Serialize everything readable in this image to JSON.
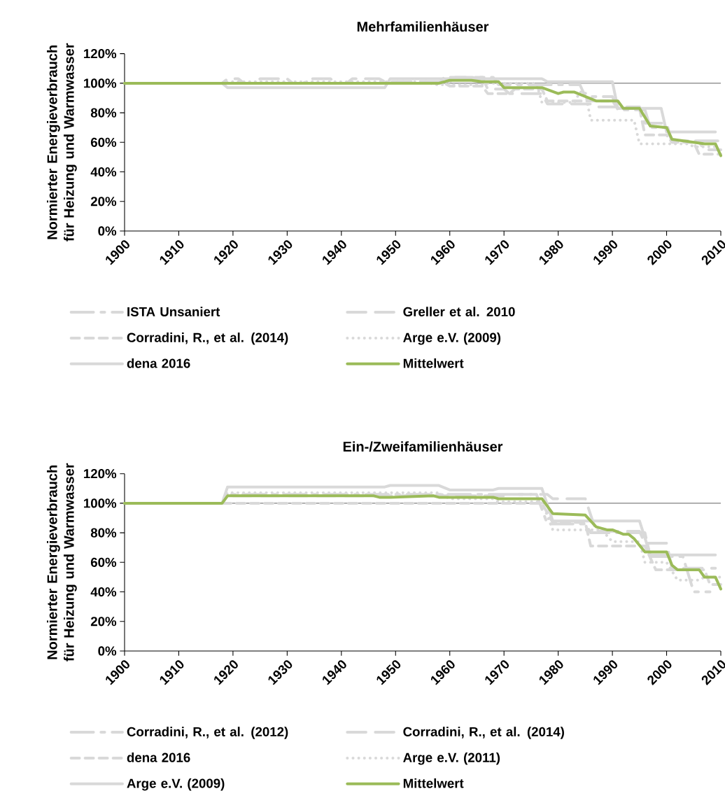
{
  "chart_data": [
    {
      "type": "line",
      "title": "Mehrfamilienhäuser",
      "ylabel": "Normierter Energieverbrauch für Heizung und Warmwasser",
      "xlim": [
        1900,
        2010
      ],
      "xticks": [
        1900,
        1910,
        1920,
        1930,
        1940,
        1950,
        1960,
        1970,
        1980,
        1990,
        2000,
        2010
      ],
      "ylim": [
        0,
        120
      ],
      "yticks": [
        {
          "value": 0,
          "label": "0%"
        },
        {
          "value": 20,
          "label": "20%"
        },
        {
          "value": 40,
          "label": "40%"
        },
        {
          "value": 60,
          "label": "60%"
        },
        {
          "value": 80,
          "label": "80%"
        },
        {
          "value": 100,
          "label": "100%"
        },
        {
          "value": 120,
          "label": "120%"
        }
      ],
      "legend": "bottom",
      "ref_lines": [
        {
          "axis": "y",
          "value": 100,
          "color": "#808080"
        }
      ],
      "series": [
        {
          "name": "ISTA Unsaniert",
          "color": "#d9d9d9",
          "line_style": "dashdot",
          "x": [
            1900,
            1958,
            1959,
            1968,
            1969,
            1984,
            1985,
            1990,
            1991,
            1996,
            1997,
            2000,
            2001,
            2010
          ],
          "values": [
            100,
            100,
            104,
            104,
            99,
            99,
            91,
            91,
            82,
            82,
            70,
            70,
            61,
            61
          ]
        },
        {
          "name": "Greller et al. 2010",
          "color": "#d9d9d9",
          "line_style": "longdash",
          "x": [
            1900,
            1918,
            1919,
            1921,
            1922,
            1924,
            1925,
            1930,
            1931,
            1933,
            1934,
            1938,
            1939,
            1941,
            1942,
            1947,
            1948,
            1960,
            1961,
            1966,
            1967,
            1970,
            1971,
            1977,
            1978,
            1986,
            1987,
            1995,
            1996,
            2000,
            2001,
            2006,
            2007,
            2010
          ],
          "values": [
            100,
            100,
            103,
            103,
            100,
            100,
            103,
            103,
            100,
            100,
            103,
            103,
            100,
            100,
            103,
            103,
            101,
            101,
            104,
            104,
            96,
            96,
            93,
            93,
            86,
            86,
            84,
            84,
            73,
            73,
            60,
            60,
            55,
            55
          ]
        },
        {
          "name": "Corradini, R., et al. (2014)",
          "color": "#d9d9d9",
          "line_style": "dashed",
          "x": [
            1900,
            1959,
            1960,
            1966,
            1967,
            1971,
            1972,
            1977,
            1978,
            1990,
            1991,
            1995,
            1996,
            2000,
            2001,
            2005,
            2006,
            2010
          ],
          "values": [
            100,
            100,
            98,
            98,
            93,
            93,
            96,
            96,
            88,
            88,
            83,
            83,
            65,
            65,
            60,
            60,
            52,
            52
          ]
        },
        {
          "name": "Arge e.V.  (2009)",
          "color": "#d9d9d9",
          "line_style": "dotted",
          "x": [
            1900,
            1918,
            1919,
            1956,
            1957,
            1966,
            1967,
            1976,
            1977,
            1983,
            1984,
            1985,
            1986,
            1994,
            1995,
            2004,
            2005,
            2009
          ],
          "values": [
            100,
            100,
            101,
            101,
            99,
            99,
            100,
            100,
            87,
            87,
            94,
            94,
            75,
            75,
            59,
            59,
            57,
            57
          ]
        },
        {
          "name": "dena 2016",
          "color": "#d9d9d9",
          "line_style": "solid",
          "x": [
            1900,
            1918,
            1919,
            1948,
            1949,
            1977,
            1978,
            1990,
            1991,
            1999,
            2000,
            2009
          ],
          "values": [
            100,
            100,
            97,
            97,
            103,
            103,
            101,
            101,
            83,
            83,
            67,
            67
          ]
        },
        {
          "name": "Mittelwert",
          "color": "#9bbb59",
          "line_style": "solid",
          "x": [
            1900,
            1958,
            1960,
            1964,
            1966,
            1969,
            1970,
            1977,
            1980,
            1981,
            1983,
            1987,
            1991,
            1992,
            1995,
            1997,
            2000,
            2001,
            2005,
            2007,
            2009,
            2010
          ],
          "values": [
            100,
            100,
            102,
            102,
            101,
            101,
            97,
            97,
            93,
            94,
            94,
            88,
            88,
            83,
            83,
            71,
            70,
            62,
            60,
            59,
            59,
            51
          ]
        }
      ]
    },
    {
      "type": "line",
      "title": "Ein-/Zweifamilienhäuser",
      "ylabel": "Normierter Energieverbrauch für Heizung und Warmwasser",
      "xlim": [
        1900,
        2010
      ],
      "xticks": [
        1900,
        1910,
        1920,
        1930,
        1940,
        1950,
        1960,
        1970,
        1980,
        1990,
        2000,
        2010
      ],
      "ylim": [
        0,
        120
      ],
      "yticks": [
        {
          "value": 0,
          "label": "0%"
        },
        {
          "value": 20,
          "label": "20%"
        },
        {
          "value": 40,
          "label": "40%"
        },
        {
          "value": 60,
          "label": "60%"
        },
        {
          "value": 80,
          "label": "80%"
        },
        {
          "value": 100,
          "label": "100%"
        },
        {
          "value": 120,
          "label": "120%"
        }
      ],
      "legend": "bottom",
      "ref_lines": [
        {
          "axis": "y",
          "value": 100,
          "color": "#808080"
        }
      ],
      "series": [
        {
          "name": "Corradini, R., et al. (2012)",
          "color": "#d9d9d9",
          "line_style": "dashdot",
          "x": [
            1900,
            1918,
            1919,
            1976,
            1978,
            1985,
            1986,
            1996,
            1997,
            2003,
            2005,
            2008
          ],
          "values": [
            100,
            100,
            106,
            106,
            86,
            86,
            80,
            80,
            64,
            64,
            40,
            40
          ]
        },
        {
          "name": "Corradini, R., et al. (2014)",
          "color": "#d9d9d9",
          "line_style": "longdash",
          "x": [
            1900,
            1918,
            1919,
            1970,
            1971,
            1978,
            1979,
            1985,
            1987,
            1995,
            1996,
            2000,
            2001,
            2009
          ],
          "values": [
            100,
            100,
            105,
            105,
            106,
            106,
            103,
            103,
            81,
            81,
            73,
            73,
            56,
            56
          ]
        },
        {
          "name": "dena 2016",
          "color": "#d9d9d9",
          "line_style": "dashed",
          "x": [
            1900,
            1918,
            1919,
            1977,
            1979,
            1985,
            1986,
            1996,
            1998,
            2007,
            2008,
            2010
          ],
          "values": [
            100,
            100,
            100,
            100,
            87,
            87,
            71,
            71,
            55,
            55,
            45,
            45
          ]
        },
        {
          "name": "Arge e.V.  (2011)",
          "color": "#d9d9d9",
          "line_style": "dotted",
          "x": [
            1900,
            1918,
            1919,
            1958,
            1960,
            1968,
            1969,
            1977,
            1979,
            1988,
            1990,
            1995,
            1996,
            2000,
            2002,
            2006,
            2007,
            2010
          ],
          "values": [
            100,
            100,
            107,
            107,
            103,
            103,
            101,
            101,
            82,
            82,
            74,
            74,
            60,
            60,
            48,
            48,
            50,
            50
          ]
        },
        {
          "name": "Arge e.V.  (2009)",
          "color": "#d9d9d9",
          "line_style": "solid",
          "x": [
            1900,
            1918,
            1919,
            1948,
            1949,
            1958,
            1960,
            1968,
            1969,
            1977,
            1979,
            1995,
            1997,
            2009
          ],
          "values": [
            100,
            100,
            111,
            111,
            112,
            112,
            109,
            109,
            110,
            110,
            88,
            88,
            65,
            65
          ]
        },
        {
          "name": "Mittelwert",
          "color": "#9bbb59",
          "line_style": "solid",
          "x": [
            1900,
            1918,
            1919,
            1946,
            1947,
            1949,
            1957,
            1958,
            1968,
            1969,
            1970,
            1977,
            1979,
            1985,
            1987,
            1989,
            1990,
            1992,
            1993,
            1994,
            1996,
            2000,
            2001,
            2002,
            2006,
            2007,
            2009,
            2010
          ],
          "values": [
            100,
            100,
            105,
            105,
            104,
            104,
            105,
            104,
            104,
            103,
            103,
            103,
            93,
            92,
            84,
            82,
            82,
            79,
            79,
            76,
            67,
            67,
            58,
            55,
            55,
            50,
            50,
            42
          ]
        }
      ]
    }
  ]
}
